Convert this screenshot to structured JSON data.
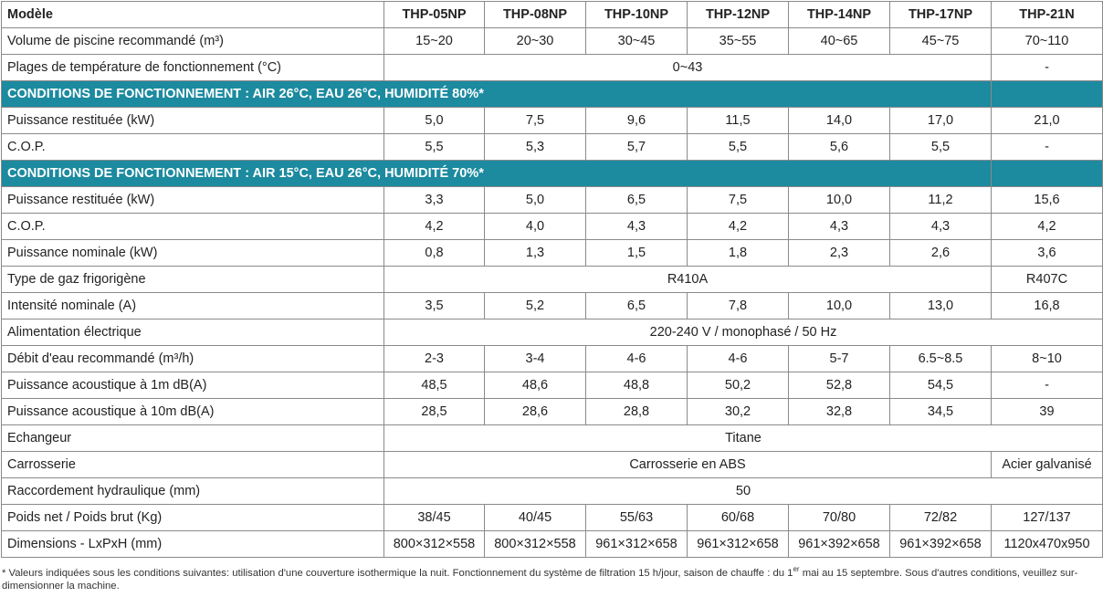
{
  "header": {
    "label": "Modèle",
    "models": [
      "THP-05NP",
      "THP-08NP",
      "THP-10NP",
      "THP-12NP",
      "THP-14NP",
      "THP-17NP",
      "THP-21N"
    ]
  },
  "rows": [
    {
      "label": "Volume de piscine recommandé  (m³)",
      "cells": [
        "15~20",
        "20~30",
        "30~45",
        "35~55",
        "40~65",
        "45~75",
        "70~110"
      ]
    },
    {
      "label": "Plages de température de fonctionnement (°C)",
      "cells": [
        "0~43",
        "-"
      ]
    },
    {
      "section": "CONDITIONS DE FONCTIONNEMENT : AIR 26°C, EAU 26°C, HUMIDITÉ 80%*"
    },
    {
      "label": "Puissance restituée (kW)",
      "cells": [
        "5,0",
        "7,5",
        "9,6",
        "11,5",
        "14,0",
        "17,0",
        "21,0"
      ]
    },
    {
      "label": "C.O.P.",
      "cells": [
        "5,5",
        "5,3",
        "5,7",
        "5,5",
        "5,6",
        "5,5",
        "-"
      ]
    },
    {
      "section": "CONDITIONS DE FONCTIONNEMENT : AIR 15°C, EAU 26°C, HUMIDITÉ 70%*"
    },
    {
      "label": "Puissance restituée (kW)",
      "cells": [
        "3,3",
        "5,0",
        "6,5",
        "7,5",
        "10,0",
        "11,2",
        "15,6"
      ]
    },
    {
      "label": "C.O.P.",
      "cells": [
        "4,2",
        "4,0",
        "4,3",
        "4,2",
        "4,3",
        "4,3",
        "4,2"
      ]
    },
    {
      "label": "Puissance nominale  (kW)",
      "cells": [
        "0,8",
        "1,3",
        "1,5",
        "1,8",
        "2,3",
        "2,6",
        "3,6"
      ]
    },
    {
      "label": "Type de gaz frigorigène",
      "cells": [
        "R410A",
        "R407C"
      ]
    },
    {
      "label": "Intensité nominale (A)",
      "cells": [
        "3,5",
        "5,2",
        "6,5",
        "7,8",
        "10,0",
        "13,0",
        "16,8"
      ]
    },
    {
      "label": "Alimentation électrique",
      "cells": [
        "220-240 V / monophasé / 50 Hz"
      ]
    },
    {
      "label": "Débit d'eau recommandé (m³/h)",
      "cells": [
        "2-3",
        "3-4",
        "4-6",
        "4-6",
        "5-7",
        "6.5~8.5",
        "8~10"
      ]
    },
    {
      "label": "Puissance acoustique à 1m dB(A)",
      "cells": [
        "48,5",
        "48,6",
        "48,8",
        "50,2",
        "52,8",
        "54,5",
        "-"
      ]
    },
    {
      "label": "Puissance acoustique à 10m dB(A)",
      "cells": [
        "28,5",
        "28,6",
        "28,8",
        "30,2",
        "32,8",
        "34,5",
        "39"
      ]
    },
    {
      "label": "Echangeur",
      "cells": [
        "Titane"
      ]
    },
    {
      "label": "Carrosserie",
      "cells": [
        "Carrosserie en ABS",
        "Acier galvanisé"
      ]
    },
    {
      "label": "Raccordement hydraulique (mm)",
      "cells": [
        "50"
      ]
    },
    {
      "label": "Poids net / Poids brut  (Kg)",
      "cells": [
        "38/45",
        "40/45",
        "55/63",
        "60/68",
        "70/80",
        "72/82",
        "127/137"
      ]
    },
    {
      "label": "Dimensions - LxPxH (mm)",
      "cells": [
        "800×312×558",
        "800×312×558",
        "961×312×658",
        "961×312×658",
        "961×392×658",
        "961×392×658",
        "1120x470x950"
      ]
    }
  ],
  "footnote": {
    "before": "* Valeurs indiquées sous les conditions suivantes: utilisation d'une couverture isothermique la nuit. Fonctionnement du système de filtration 15 h/jour, saison de chauffe : du 1",
    "sup": "er",
    "after": " mai au 15 septembre. Sous d'autres conditions, veuillez sur-dimensionner la machine."
  }
}
